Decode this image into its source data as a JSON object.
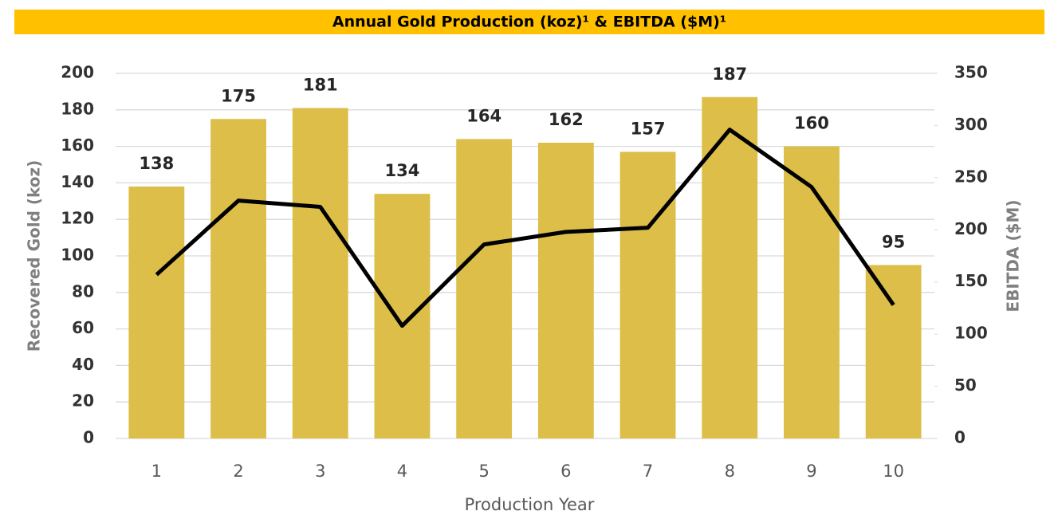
{
  "chart_data": {
    "type": "bar",
    "title": "Annual Gold Production (koz)¹ & EBITDA ($M)¹",
    "x_label": "Production Year",
    "y_label": "Recovered Gold (koz)",
    "y2_label": "EBITDA ($M)",
    "categories": [
      "1",
      "2",
      "3",
      "4",
      "5",
      "6",
      "7",
      "8",
      "9",
      "10"
    ],
    "series": [
      {
        "name": "Recovered Gold (koz)",
        "type": "bar",
        "color": "#ddbe48",
        "values": [
          138,
          175,
          181,
          134,
          164,
          162,
          157,
          187,
          160,
          95
        ]
      },
      {
        "name": "EBITDA ($M)",
        "type": "line",
        "axis": "y2",
        "color": "#000000",
        "values": [
          157,
          228,
          222,
          108,
          186,
          198,
          202,
          296,
          241,
          128
        ]
      }
    ],
    "ylim": [
      0,
      200
    ],
    "yticks": [
      0,
      20,
      40,
      60,
      80,
      100,
      120,
      140,
      160,
      180,
      200
    ],
    "y2lim": [
      0,
      350
    ],
    "y2ticks": [
      0,
      50,
      100,
      150,
      200,
      250,
      300,
      350
    ],
    "grid": true
  }
}
